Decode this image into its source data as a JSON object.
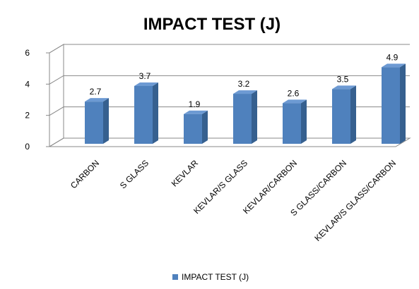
{
  "chart_data": {
    "type": "bar3d",
    "title": "IMPACT TEST (J)",
    "categories": [
      "CARBON",
      "S GLASS",
      "KEVLAR",
      "KEVLAR/S GLASS",
      "KEVLAR/CARBON",
      "S GLASS/CARBON",
      "KEVLAR/S GLASS/CARBON"
    ],
    "series": [
      {
        "name": "IMPACT TEST (J)",
        "color": "#4f81bd",
        "values": [
          2.7,
          3.7,
          1.9,
          3.2,
          2.6,
          3.5,
          4.9
        ]
      }
    ],
    "ylim": [
      0,
      6
    ],
    "yticks": [
      0,
      2,
      4,
      6
    ],
    "grid": true,
    "legend": "bottom"
  }
}
